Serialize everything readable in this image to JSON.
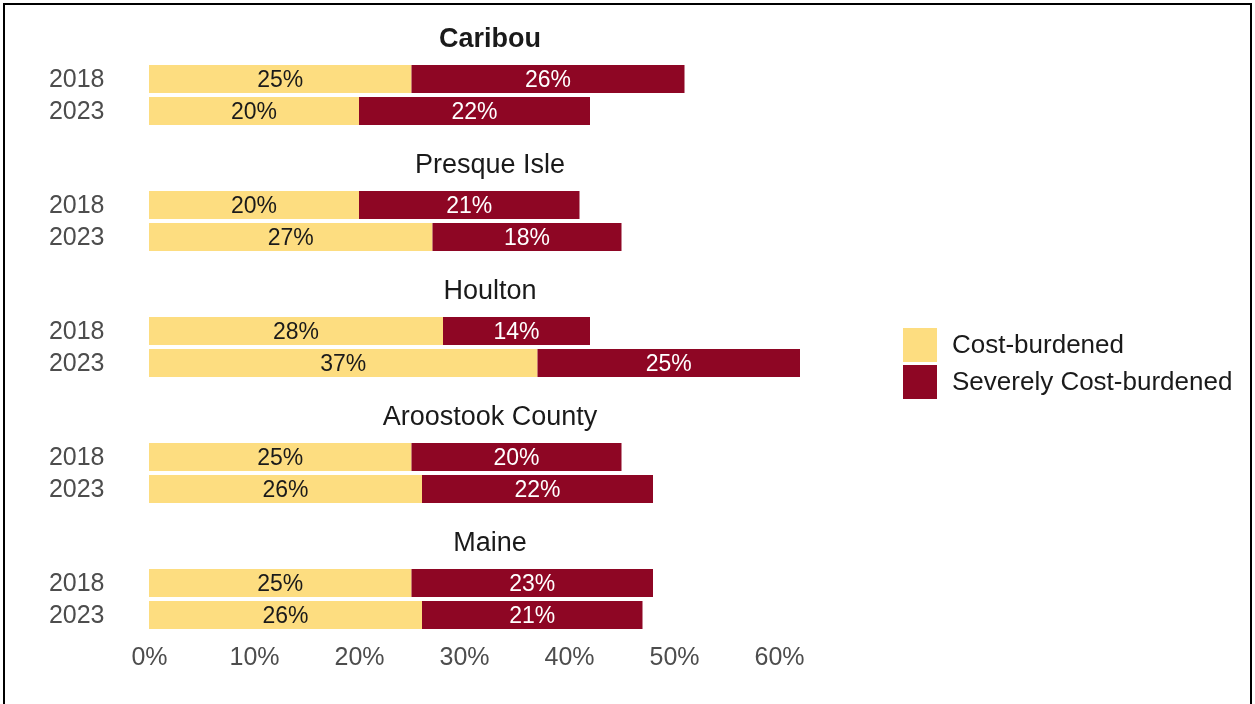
{
  "chart_data": [
    {
      "type": "bar",
      "orientation": "horizontal",
      "stacked": true,
      "title": "Caribou",
      "categories": [
        "2018",
        "2023"
      ],
      "series": [
        {
          "color": "#fddd80",
          "values": [
            25,
            20
          ],
          "value_labels": [
            "25%",
            "20%"
          ]
        },
        {
          "color": "#8e0624",
          "values": [
            26,
            22
          ],
          "value_labels": [
            "26%",
            "22%"
          ]
        }
      ],
      "tick_labels": "y"
    },
    {
      "type": "bar",
      "orientation": "horizontal",
      "stacked": true,
      "title": "Presque Isle",
      "categories": [
        "2018",
        "2023"
      ],
      "series": [
        {
          "color": "#fddd80",
          "values": [
            20,
            27
          ],
          "value_labels": [
            "20%",
            "27%"
          ]
        },
        {
          "color": "#8e0624",
          "values": [
            21,
            18
          ],
          "value_labels": [
            "21%",
            "18%"
          ]
        }
      ],
      "tick_labels": "y"
    },
    {
      "type": "bar",
      "orientation": "horizontal",
      "stacked": true,
      "title": "Houlton",
      "categories": [
        "2018",
        "2023"
      ],
      "series": [
        {
          "name": "Cost-burdened",
          "color": "#fddd80",
          "values": [
            28,
            37
          ],
          "value_labels": [
            "28%",
            "37%"
          ]
        },
        {
          "name": "Severely Cost-burdened",
          "color": "#8e0624",
          "values": [
            14,
            25
          ],
          "value_labels": [
            "14%",
            "25%"
          ]
        }
      ],
      "xlim": [
        0,
        62
      ],
      "tick_labels": "y",
      "legend": "right"
    },
    {
      "type": "bar",
      "orientation": "horizontal",
      "stacked": true,
      "title": "Aroostook County",
      "categories": [
        "2018",
        "2023"
      ],
      "series": [
        {
          "color": "#fddd80",
          "values": [
            25,
            26
          ],
          "value_labels": [
            "25%",
            "26%"
          ]
        },
        {
          "color": "#8e0624",
          "values": [
            20,
            22
          ],
          "value_labels": [
            "20%",
            "22%"
          ]
        }
      ],
      "tick_labels": "y"
    },
    {
      "type": "bar",
      "orientation": "horizontal",
      "stacked": true,
      "title": "Maine",
      "categories": [
        "2018",
        "2023"
      ],
      "series": [
        {
          "color": "#fddd80",
          "values": [
            25,
            26
          ],
          "value_labels": [
            "25%",
            "26%"
          ]
        },
        {
          "color": "#8e0624",
          "values": [
            23,
            21
          ],
          "value_labels": [
            "23%",
            "21%"
          ]
        }
      ],
      "xlim": [
        0,
        60
      ],
      "xticks": [
        {
          "value": 0,
          "label": "0%"
        },
        {
          "value": 10,
          "label": "10%"
        },
        {
          "value": 20,
          "label": "20%"
        },
        {
          "value": 30,
          "label": "30%"
        },
        {
          "value": 40,
          "label": "40%"
        },
        {
          "value": 50,
          "label": "50%"
        },
        {
          "value": 60,
          "label": "60%"
        }
      ]
    }
  ]
}
